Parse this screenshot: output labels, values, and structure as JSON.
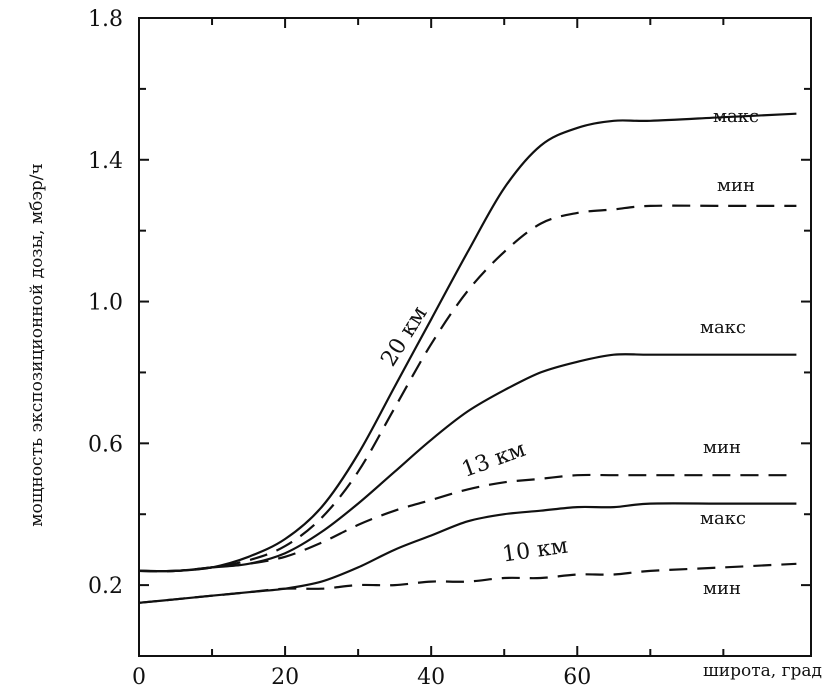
{
  "chart_data": {
    "type": "line",
    "title": "",
    "xlabel": "широта, град",
    "ylabel": "мощность экспозиционной дозы, мбэр/ч",
    "xlim": [
      0,
      92
    ],
    "ylim": [
      0,
      1.8
    ],
    "x_ticks": [
      {
        "value": 0,
        "label": "0"
      },
      {
        "value": 20,
        "label": "20"
      },
      {
        "value": 40,
        "label": "40"
      },
      {
        "value": 60,
        "label": "60"
      }
    ],
    "y_ticks": [
      {
        "value": 0.2,
        "label": "0.2"
      },
      {
        "value": 0.6,
        "label": "0.6"
      },
      {
        "value": 1.0,
        "label": "1.0"
      },
      {
        "value": 1.4,
        "label": "1.4"
      },
      {
        "value": 1.8,
        "label": "1.8"
      }
    ],
    "y_minor_ticks": [
      0.4,
      0.8,
      1.2,
      1.6
    ],
    "x_minor_ticks": [
      10,
      30,
      50,
      70,
      80
    ],
    "grid": false,
    "series": [
      {
        "name": "макс",
        "altitude": "20 км",
        "style": "solid",
        "x": [
          0,
          5,
          10,
          15,
          20,
          25,
          30,
          35,
          40,
          45,
          50,
          55,
          60,
          65,
          70,
          80,
          90
        ],
        "y": [
          0.24,
          0.24,
          0.25,
          0.28,
          0.33,
          0.42,
          0.57,
          0.76,
          0.95,
          1.14,
          1.32,
          1.44,
          1.49,
          1.51,
          1.51,
          1.52,
          1.53
        ]
      },
      {
        "name": "мин",
        "altitude": "20 км",
        "style": "dashed",
        "x": [
          0,
          5,
          10,
          15,
          20,
          25,
          30,
          35,
          40,
          45,
          50,
          55,
          60,
          65,
          70,
          80,
          90
        ],
        "y": [
          0.24,
          0.24,
          0.25,
          0.27,
          0.31,
          0.39,
          0.52,
          0.7,
          0.88,
          1.03,
          1.14,
          1.22,
          1.25,
          1.26,
          1.27,
          1.27,
          1.27
        ]
      },
      {
        "name": "макс",
        "altitude": "13 км",
        "style": "solid",
        "x": [
          0,
          5,
          10,
          15,
          20,
          25,
          30,
          35,
          40,
          45,
          50,
          55,
          60,
          65,
          70,
          80,
          90
        ],
        "y": [
          0.24,
          0.24,
          0.25,
          0.26,
          0.29,
          0.35,
          0.43,
          0.52,
          0.61,
          0.69,
          0.75,
          0.8,
          0.83,
          0.85,
          0.85,
          0.85,
          0.85
        ]
      },
      {
        "name": "мин",
        "altitude": "13 км",
        "style": "dashed",
        "x": [
          0,
          5,
          10,
          15,
          20,
          25,
          30,
          35,
          40,
          45,
          50,
          55,
          60,
          65,
          70,
          80,
          90
        ],
        "y": [
          0.24,
          0.24,
          0.25,
          0.26,
          0.28,
          0.32,
          0.37,
          0.41,
          0.44,
          0.47,
          0.49,
          0.5,
          0.51,
          0.51,
          0.51,
          0.51,
          0.51
        ]
      },
      {
        "name": "макс",
        "altitude": "10 км",
        "style": "solid",
        "x": [
          0,
          5,
          10,
          15,
          20,
          25,
          30,
          35,
          40,
          45,
          50,
          55,
          60,
          65,
          70,
          80,
          90
        ],
        "y": [
          0.15,
          0.16,
          0.17,
          0.18,
          0.19,
          0.21,
          0.25,
          0.3,
          0.34,
          0.38,
          0.4,
          0.41,
          0.42,
          0.42,
          0.43,
          0.43,
          0.43
        ]
      },
      {
        "name": "мин",
        "altitude": "10 км",
        "style": "dashed",
        "x": [
          0,
          5,
          10,
          15,
          20,
          25,
          30,
          35,
          40,
          45,
          50,
          55,
          60,
          65,
          70,
          80,
          90
        ],
        "y": [
          0.15,
          0.16,
          0.17,
          0.18,
          0.19,
          0.19,
          0.2,
          0.2,
          0.21,
          0.21,
          0.22,
          0.22,
          0.23,
          0.23,
          0.24,
          0.25,
          0.26
        ]
      }
    ],
    "curve_labels": [
      "макс",
      "мин",
      "макс",
      "мин",
      "макс",
      "мин"
    ],
    "altitude_labels": [
      "20 км",
      "13 км",
      "10 км"
    ]
  }
}
